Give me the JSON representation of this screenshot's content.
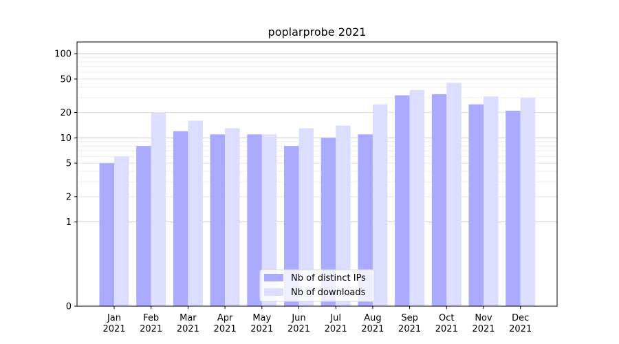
{
  "chart_data": {
    "type": "bar",
    "title": "poplarprobe 2021",
    "xlabel": "",
    "ylabel": "",
    "yscale": "symlog",
    "ylim": [
      0,
      120
    ],
    "yticks": [
      0,
      1,
      2,
      5,
      10,
      20,
      50,
      100
    ],
    "grid": "horizontal",
    "legend_position": "bottom-center",
    "categories": [
      [
        "Jan",
        "2021"
      ],
      [
        "Feb",
        "2021"
      ],
      [
        "Mar",
        "2021"
      ],
      [
        "Apr",
        "2021"
      ],
      [
        "May",
        "2021"
      ],
      [
        "Jun",
        "2021"
      ],
      [
        "Jul",
        "2021"
      ],
      [
        "Aug",
        "2021"
      ],
      [
        "Sep",
        "2021"
      ],
      [
        "Oct",
        "2021"
      ],
      [
        "Nov",
        "2021"
      ],
      [
        "Dec",
        "2021"
      ]
    ],
    "series": [
      {
        "name": "Nb of distinct IPs",
        "color": "#aaaaff",
        "values": [
          5,
          8,
          12,
          11,
          11,
          8,
          10,
          11,
          32,
          33,
          25,
          21
        ]
      },
      {
        "name": "Nb of downloads",
        "color": "#ddddff",
        "values": [
          6,
          20,
          16,
          13,
          11,
          13,
          14,
          25,
          37,
          45,
          31,
          30
        ]
      }
    ]
  }
}
